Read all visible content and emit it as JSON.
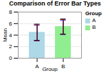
{
  "chart_data": {
    "type": "bar",
    "title": "Comparison of Error Bar Types",
    "xlabel": "Group",
    "ylabel": "Mean",
    "categories": [
      "A",
      "B"
    ],
    "values": [
      4.5,
      5.5
    ],
    "colors": [
      "#add8e6",
      "#90ee90"
    ],
    "error_bars": [
      {
        "color": "#111111",
        "centers": [
          4.5,
          5.5
        ],
        "errors": [
          1.4,
          1.3
        ]
      },
      {
        "color": "#dd2222",
        "centers": [
          4.42,
          5.42
        ],
        "errors": [
          1.376,
          1.276
        ]
      },
      {
        "color": "#2222dd",
        "centers": [
          4.34,
          5.34
        ],
        "errors": [
          1.352,
          1.252
        ]
      }
    ],
    "ylim": [
      0,
      8
    ],
    "yticks": [
      0,
      2,
      4,
      6,
      8
    ],
    "grid": true,
    "legend": "right",
    "legend_title": "Group"
  }
}
